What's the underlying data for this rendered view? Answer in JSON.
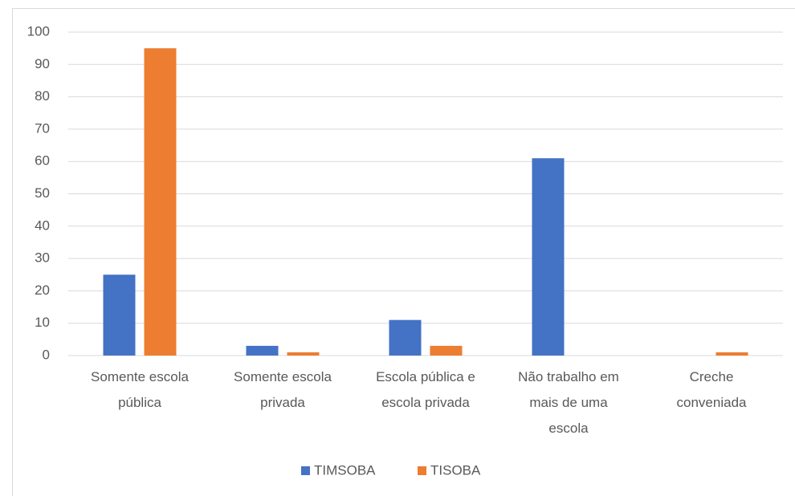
{
  "chart_data": {
    "type": "bar",
    "categories": [
      "Somente escola pública",
      "Somente escola privada",
      "Escola pública e escola privada",
      "Não trabalho em mais de uma escola",
      "Creche conveniada"
    ],
    "series": [
      {
        "name": "TIMSOBA",
        "color": "#4472c4",
        "values": [
          25,
          3,
          11,
          61,
          0
        ]
      },
      {
        "name": "TISOBA",
        "color": "#ed7d31",
        "values": [
          95,
          1,
          3,
          0,
          1
        ]
      }
    ],
    "ylim": [
      0,
      100
    ],
    "yticks": [
      0,
      10,
      20,
      30,
      40,
      50,
      60,
      70,
      80,
      90,
      100
    ],
    "grid": true,
    "legend": "bottom"
  }
}
